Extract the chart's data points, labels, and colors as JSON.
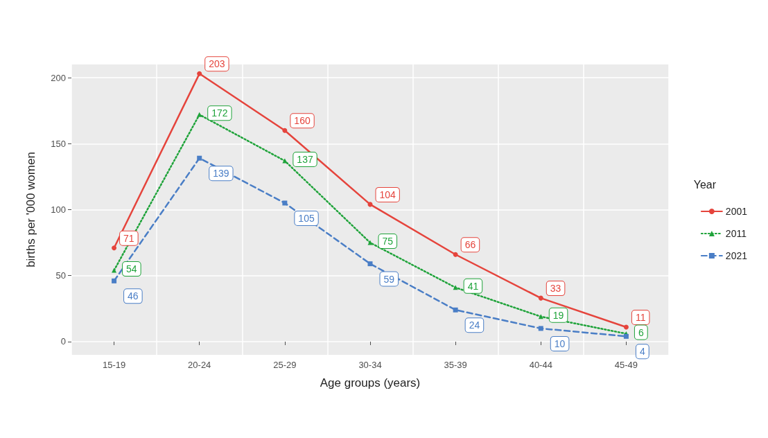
{
  "chart_data": {
    "type": "line",
    "xlabel": "Age groups (years)",
    "ylabel": "births per '000 women",
    "legend_title": "Year",
    "categories": [
      "15-19",
      "20-24",
      "25-29",
      "30-34",
      "35-39",
      "40-44",
      "45-49"
    ],
    "series": [
      {
        "name": "2001",
        "color": "#e5443c",
        "marker": "circle",
        "line_style": "solid",
        "values": [
          71,
          203,
          160,
          104,
          66,
          33,
          11
        ]
      },
      {
        "name": "2011",
        "color": "#1fa33a",
        "marker": "triangle",
        "line_style": "dotted",
        "values": [
          54,
          172,
          137,
          75,
          41,
          19,
          6
        ]
      },
      {
        "name": "2021",
        "color": "#4a7ec6",
        "marker": "square",
        "line_style": "dashed",
        "values": [
          46,
          139,
          105,
          59,
          24,
          10,
          4
        ]
      }
    ],
    "ylim": [
      -10,
      210
    ],
    "yticks": [
      0,
      50,
      100,
      150,
      200
    ],
    "grid": true,
    "legend": "right",
    "data_labels": true
  }
}
